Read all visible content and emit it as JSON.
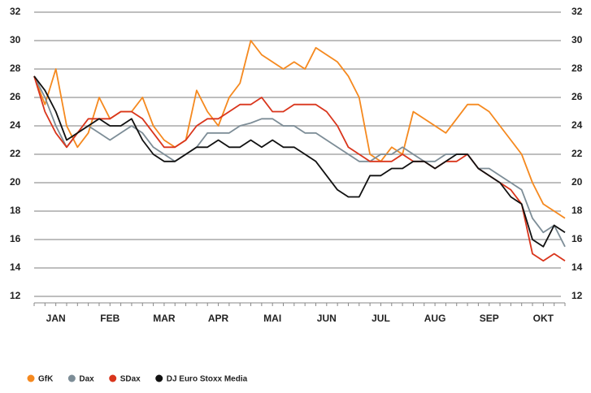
{
  "chart_data": {
    "type": "line",
    "categories": [
      null,
      null,
      "JAN",
      null,
      null,
      null,
      null,
      "FEB",
      null,
      null,
      null,
      null,
      "MAR",
      null,
      null,
      null,
      null,
      "APR",
      null,
      null,
      null,
      null,
      "MAI",
      null,
      null,
      null,
      null,
      "JUN",
      null,
      null,
      null,
      null,
      "JUL",
      null,
      null,
      null,
      null,
      "AUG",
      null,
      null,
      null,
      null,
      "SEP",
      null,
      null,
      null,
      null,
      "OKT",
      null,
      null
    ],
    "series": [
      {
        "name": "GfK",
        "color": "#f5891f",
        "values": [
          27.5,
          25.5,
          28,
          24,
          22.5,
          23.5,
          26,
          24.5,
          25,
          25,
          26,
          24,
          23,
          22.5,
          23,
          26.5,
          25,
          24,
          26,
          27,
          30,
          29,
          28.5,
          28,
          28.5,
          28,
          29.5,
          29,
          28.5,
          27.5,
          26,
          22,
          21.5,
          22.5,
          22,
          25,
          24.5,
          24,
          23.5,
          24.5,
          25.5,
          25.5,
          25,
          24,
          23,
          22,
          20,
          18.5,
          18,
          17.5
        ]
      },
      {
        "name": "Dax",
        "color": "#7d8d97",
        "values": [
          27.5,
          26,
          24,
          22.5,
          23.5,
          24,
          23.5,
          23,
          23.5,
          24,
          23.5,
          22.5,
          22,
          21.5,
          22,
          22.5,
          23.5,
          23.5,
          23.5,
          24,
          24.2,
          24.5,
          24.5,
          24,
          24,
          23.5,
          23.5,
          23,
          22.5,
          22,
          21.5,
          21.5,
          22,
          22,
          22.5,
          22,
          21.5,
          21.5,
          22,
          22,
          22,
          21,
          21,
          20.5,
          20,
          19.5,
          17.5,
          16.5,
          17,
          15.5
        ]
      },
      {
        "name": "SDax",
        "color": "#d9351c",
        "values": [
          27.5,
          25,
          23.5,
          22.5,
          23.5,
          24.5,
          24.5,
          24.5,
          25,
          25,
          24.5,
          23.5,
          22.5,
          22.5,
          23,
          24,
          24.5,
          24.5,
          25,
          25.5,
          25.5,
          26,
          25,
          25,
          25.5,
          25.5,
          25.5,
          25,
          24,
          22.5,
          22,
          21.5,
          21.5,
          21.5,
          22,
          21.5,
          21.5,
          21,
          21.5,
          21.5,
          22,
          21,
          20.5,
          20,
          19.5,
          18.5,
          15,
          14.5,
          15,
          14.5
        ]
      },
      {
        "name": "DJ Euro Stoxx Media",
        "color": "#111111",
        "values": [
          27.5,
          26.5,
          25,
          23,
          23.5,
          24,
          24.5,
          24,
          24,
          24.5,
          23,
          22,
          21.5,
          21.5,
          22,
          22.5,
          22.5,
          23,
          22.5,
          22.5,
          23,
          22.5,
          23,
          22.5,
          22.5,
          22,
          21.5,
          20.5,
          19.5,
          19,
          19,
          20.5,
          20.5,
          21,
          21,
          21.5,
          21.5,
          21,
          21.5,
          22,
          22,
          21,
          20.5,
          20,
          19,
          18.5,
          16,
          15.5,
          17,
          16.5
        ]
      }
    ],
    "ylim": [
      12,
      32
    ],
    "yticks": [
      12,
      14,
      16,
      18,
      20,
      22,
      24,
      26,
      28,
      30,
      32
    ],
    "y2lim": [
      12,
      32
    ],
    "y2ticks": [
      12,
      14,
      16,
      18,
      20,
      22,
      24,
      26,
      28,
      30,
      32
    ],
    "grid": true
  }
}
